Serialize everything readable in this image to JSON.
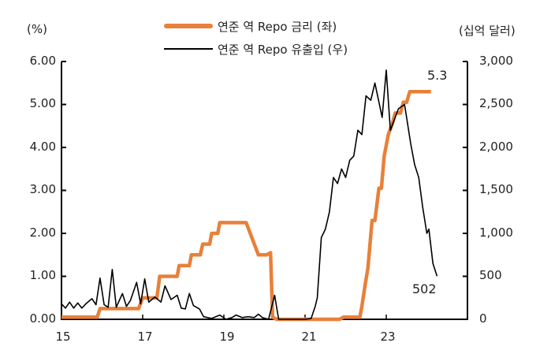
{
  "chart_data": {
    "type": "line",
    "title": "",
    "legend": [
      {
        "name": "연준 역 Repo 금리 (좌)",
        "color": "#E8803A",
        "axis": "left"
      },
      {
        "name": "연준 역 Repo 유출입 (우)",
        "color": "#000000",
        "axis": "right"
      }
    ],
    "left_axis": {
      "unit": "(%)",
      "range": [
        0,
        6
      ],
      "ticks": [
        "0.00",
        "1.00",
        "2.00",
        "3.00",
        "4.00",
        "5.00",
        "6.00"
      ]
    },
    "right_axis": {
      "unit": "(십억 달러)",
      "range": [
        0,
        3000
      ],
      "ticks": [
        "0",
        "500",
        "1,000",
        "1,500",
        "2,000",
        "2,500",
        "3,000"
      ]
    },
    "x_axis": {
      "range": [
        15,
        25
      ],
      "ticks": [
        "15",
        "17",
        "19",
        "21",
        "23"
      ]
    },
    "series": [
      {
        "name": "연준 역 Repo 금리 (좌)",
        "axis": "left",
        "points": [
          [
            15.0,
            0.05
          ],
          [
            15.88,
            0.05
          ],
          [
            15.95,
            0.25
          ],
          [
            16.9,
            0.25
          ],
          [
            17.0,
            0.5
          ],
          [
            17.35,
            0.5
          ],
          [
            17.42,
            1.0
          ],
          [
            17.85,
            1.0
          ],
          [
            17.9,
            1.25
          ],
          [
            18.15,
            1.25
          ],
          [
            18.2,
            1.5
          ],
          [
            18.42,
            1.5
          ],
          [
            18.48,
            1.75
          ],
          [
            18.65,
            1.75
          ],
          [
            18.7,
            2.0
          ],
          [
            18.85,
            2.0
          ],
          [
            18.9,
            2.25
          ],
          [
            19.55,
            2.25
          ],
          [
            19.75,
            1.75
          ],
          [
            19.85,
            1.5
          ],
          [
            20.05,
            1.5
          ],
          [
            20.15,
            1.55
          ],
          [
            20.2,
            0.05
          ],
          [
            20.3,
            0.0
          ],
          [
            21.85,
            0.0
          ],
          [
            21.95,
            0.05
          ],
          [
            22.2,
            0.05
          ],
          [
            22.35,
            0.05
          ],
          [
            22.4,
            0.3
          ],
          [
            22.48,
            0.8
          ],
          [
            22.55,
            1.2
          ],
          [
            22.65,
            2.3
          ],
          [
            22.72,
            2.3
          ],
          [
            22.82,
            3.05
          ],
          [
            22.88,
            3.05
          ],
          [
            22.95,
            3.8
          ],
          [
            23.05,
            4.3
          ],
          [
            23.15,
            4.55
          ],
          [
            23.22,
            4.8
          ],
          [
            23.35,
            4.8
          ],
          [
            23.42,
            5.05
          ],
          [
            23.5,
            5.05
          ],
          [
            23.58,
            5.3
          ],
          [
            24.1,
            5.3
          ]
        ]
      },
      {
        "name": "연준 역 Repo 유출입 (우)",
        "axis": "right",
        "points": [
          [
            15.0,
            180
          ],
          [
            15.1,
            130
          ],
          [
            15.2,
            200
          ],
          [
            15.3,
            130
          ],
          [
            15.4,
            190
          ],
          [
            15.5,
            130
          ],
          [
            15.6,
            180
          ],
          [
            15.75,
            240
          ],
          [
            15.85,
            170
          ],
          [
            15.95,
            480
          ],
          [
            16.05,
            170
          ],
          [
            16.15,
            140
          ],
          [
            16.25,
            580
          ],
          [
            16.35,
            140
          ],
          [
            16.5,
            300
          ],
          [
            16.6,
            150
          ],
          [
            16.7,
            220
          ],
          [
            16.85,
            430
          ],
          [
            16.95,
            180
          ],
          [
            17.05,
            470
          ],
          [
            17.15,
            200
          ],
          [
            17.3,
            260
          ],
          [
            17.45,
            200
          ],
          [
            17.55,
            390
          ],
          [
            17.7,
            230
          ],
          [
            17.85,
            280
          ],
          [
            17.95,
            130
          ],
          [
            18.05,
            120
          ],
          [
            18.15,
            300
          ],
          [
            18.25,
            160
          ],
          [
            18.4,
            120
          ],
          [
            18.5,
            30
          ],
          [
            18.7,
            10
          ],
          [
            18.9,
            50
          ],
          [
            19.05,
            0
          ],
          [
            19.2,
            20
          ],
          [
            19.3,
            50
          ],
          [
            19.45,
            20
          ],
          [
            19.6,
            30
          ],
          [
            19.75,
            20
          ],
          [
            19.85,
            60
          ],
          [
            19.95,
            20
          ],
          [
            20.1,
            0
          ],
          [
            20.25,
            280
          ],
          [
            20.35,
            0
          ],
          [
            21.0,
            0
          ],
          [
            21.15,
            10
          ],
          [
            21.25,
            150
          ],
          [
            21.3,
            250
          ],
          [
            21.4,
            950
          ],
          [
            21.5,
            1050
          ],
          [
            21.6,
            1250
          ],
          [
            21.7,
            1650
          ],
          [
            21.8,
            1580
          ],
          [
            21.9,
            1750
          ],
          [
            22.0,
            1650
          ],
          [
            22.1,
            1850
          ],
          [
            22.2,
            1900
          ],
          [
            22.3,
            2200
          ],
          [
            22.4,
            2150
          ],
          [
            22.5,
            2600
          ],
          [
            22.62,
            2550
          ],
          [
            22.72,
            2750
          ],
          [
            22.9,
            2350
          ],
          [
            23.0,
            2900
          ],
          [
            23.1,
            2200
          ],
          [
            23.3,
            2450
          ],
          [
            23.45,
            2500
          ],
          [
            23.5,
            2350
          ],
          [
            23.6,
            2050
          ],
          [
            23.7,
            1800
          ],
          [
            23.8,
            1650
          ],
          [
            23.9,
            1300
          ],
          [
            24.0,
            1000
          ],
          [
            24.05,
            1050
          ],
          [
            24.15,
            650
          ],
          [
            24.25,
            502
          ]
        ]
      }
    ],
    "annotations": [
      {
        "text": "5.3",
        "series": "연준 역 Repo 금리 (좌)"
      },
      {
        "text": "502",
        "series": "연준 역 Repo 유출입 (우)"
      }
    ]
  },
  "legend": {
    "item1": "연준 역 Repo 금리 (좌)",
    "item2": "연준 역 Repo 유출입 (우)"
  },
  "axes": {
    "left_unit": "(%)",
    "right_unit": "(십억 달러)",
    "left_ticks": [
      "6.00",
      "5.00",
      "4.00",
      "3.00",
      "2.00",
      "1.00",
      "0.00"
    ],
    "right_ticks": [
      "3,000",
      "2,500",
      "2,000",
      "1,500",
      "1,000",
      "500",
      "0"
    ],
    "x_ticks": [
      "15",
      "17",
      "19",
      "21",
      "23"
    ]
  },
  "annotations": {
    "rate_last": "5.3",
    "flow_last": "502"
  }
}
